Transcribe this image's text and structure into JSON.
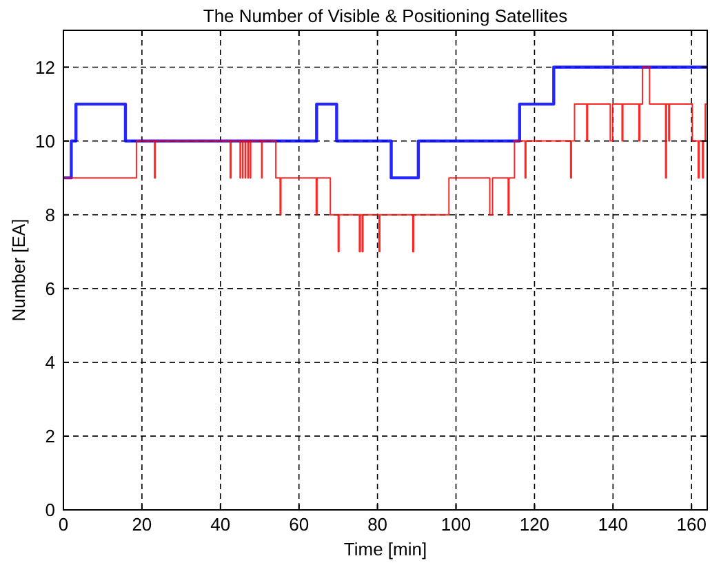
{
  "chart_data": {
    "type": "step",
    "title": "The Number of Visible & Positioning Satellites",
    "xlabel": "Time [min]",
    "ylabel": "Number [EA]",
    "xlim": [
      0,
      164
    ],
    "xticks": [
      0,
      20,
      40,
      60,
      80,
      100,
      120,
      140,
      160
    ],
    "ylim": [
      0,
      13
    ],
    "yticks": [
      0,
      2,
      4,
      6,
      8,
      10,
      12
    ],
    "grid": true,
    "line_style": "solid",
    "marker": "none",
    "series": [
      {
        "color": "#0000ff",
        "x": [
          0,
          2,
          3.2,
          15.8,
          64.5,
          69.6,
          83.5,
          90.4,
          116.2,
          124.9,
          164
        ],
        "values": [
          9,
          10,
          11,
          10,
          11,
          10,
          9,
          10,
          11,
          12,
          12
        ]
      },
      {
        "color": "#ff0000",
        "x": [
          0,
          18.6,
          23.2,
          23.4,
          42.5,
          42.7,
          45,
          45.1,
          45.6,
          45.7,
          46.3,
          46.4,
          47,
          47.1,
          47.6,
          47.7,
          50.5,
          50.6,
          54.1,
          55.2,
          55.4,
          64.4,
          64.6,
          68,
          70,
          70.2,
          75.4,
          75.6,
          76.1,
          76.3,
          80.4,
          80.6,
          89,
          89.2,
          98.2,
          108.6,
          109.3,
          113.3,
          113.5,
          114.9,
          117.6,
          117.8,
          129.2,
          129.4,
          130.2,
          133.3,
          133.5,
          139.3,
          139.9,
          142.3,
          142.5,
          146.6,
          146.8,
          147.5,
          149.3,
          153.4,
          153.6,
          154.2,
          154.4,
          160.2,
          161.7,
          161.9,
          162.8,
          163,
          163.5,
          164
        ],
        "values": [
          9,
          10,
          9,
          10,
          9,
          10,
          9,
          10,
          9,
          10,
          9,
          10,
          9,
          10,
          9,
          10,
          9,
          10,
          9,
          8,
          9,
          8,
          9,
          8,
          7,
          8,
          7,
          8,
          7,
          8,
          7,
          8,
          7,
          8,
          9,
          8,
          9,
          8,
          9,
          10,
          9,
          10,
          9,
          10,
          11,
          10,
          11,
          10,
          11,
          10,
          11,
          10,
          11,
          12,
          11,
          9,
          11,
          10,
          11,
          10,
          9,
          10,
          9,
          10,
          11,
          11
        ]
      }
    ]
  }
}
